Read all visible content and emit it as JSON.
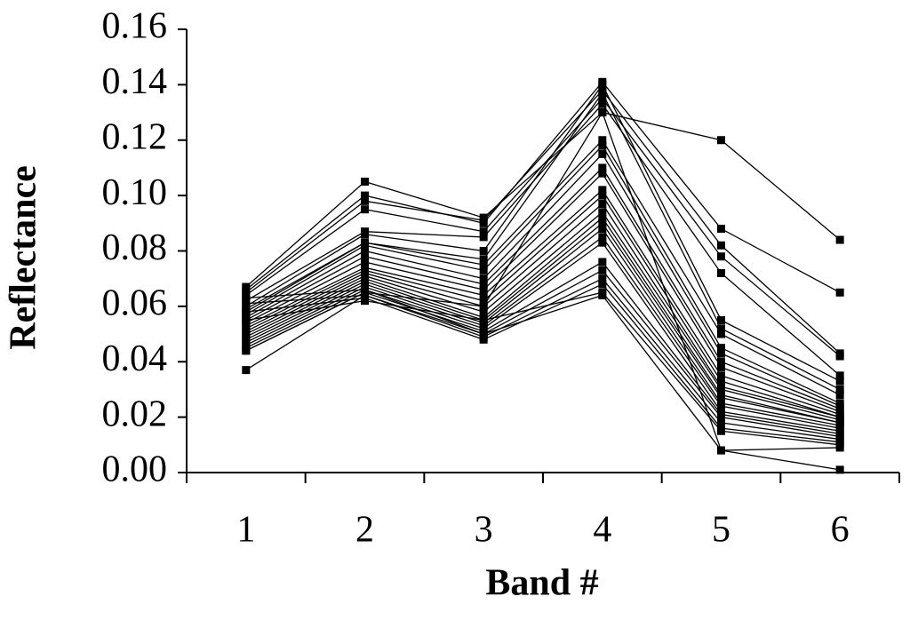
{
  "chart_data": {
    "type": "line",
    "x_label": "Band #",
    "y_label": "Reflectance",
    "categories": [
      "1",
      "2",
      "3",
      "4",
      "5",
      "6"
    ],
    "color": "#000000",
    "marker": "square",
    "ylim": [
      0,
      0.16
    ],
    "yticks": [
      {
        "value": 0,
        "label": "0.00"
      },
      {
        "value": 0.02,
        "label": "0.02"
      },
      {
        "value": 0.04,
        "label": "0.04"
      },
      {
        "value": 0.06,
        "label": "0.06"
      },
      {
        "value": 0.08,
        "label": "0.08"
      },
      {
        "value": 0.1,
        "label": "0.10"
      },
      {
        "value": 0.12,
        "label": "0.12"
      },
      {
        "value": 0.14,
        "label": "0.14"
      },
      {
        "value": 0.16,
        "label": "0.16"
      }
    ],
    "series": [
      {
        "values": [
          0.037,
          0.064,
          0.05,
          0.064,
          0.008,
          0.001
        ]
      },
      {
        "values": [
          0.067,
          0.105,
          0.092,
          0.13,
          0.12,
          0.084
        ]
      },
      {
        "values": [
          0.066,
          0.1,
          0.09,
          0.141,
          0.088,
          0.065
        ]
      },
      {
        "values": [
          0.065,
          0.098,
          0.091,
          0.138,
          0.082,
          0.043
        ]
      },
      {
        "values": [
          0.064,
          0.095,
          0.087,
          0.135,
          0.078,
          0.042
        ]
      },
      {
        "values": [
          0.062,
          0.087,
          0.085,
          0.133,
          0.072,
          0.035
        ]
      },
      {
        "values": [
          0.06,
          0.086,
          0.08,
          0.14,
          0.055,
          0.033
        ]
      },
      {
        "values": [
          0.059,
          0.083,
          0.077,
          0.137,
          0.052,
          0.03
        ]
      },
      {
        "values": [
          0.058,
          0.083,
          0.075,
          0.12,
          0.05,
          0.028
        ]
      },
      {
        "values": [
          0.057,
          0.082,
          0.073,
          0.118,
          0.045,
          0.025
        ]
      },
      {
        "values": [
          0.056,
          0.08,
          0.07,
          0.115,
          0.043,
          0.024
        ]
      },
      {
        "values": [
          0.055,
          0.078,
          0.068,
          0.11,
          0.04,
          0.023
        ]
      },
      {
        "values": [
          0.054,
          0.076,
          0.066,
          0.108,
          0.038,
          0.022
        ]
      },
      {
        "values": [
          0.053,
          0.074,
          0.064,
          0.102,
          0.035,
          0.021
        ]
      },
      {
        "values": [
          0.052,
          0.073,
          0.062,
          0.1,
          0.033,
          0.02
        ]
      },
      {
        "values": [
          0.051,
          0.072,
          0.06,
          0.097,
          0.031,
          0.02
        ]
      },
      {
        "values": [
          0.05,
          0.071,
          0.058,
          0.094,
          0.03,
          0.019
        ]
      },
      {
        "values": [
          0.049,
          0.07,
          0.056,
          0.092,
          0.028,
          0.018
        ]
      },
      {
        "values": [
          0.048,
          0.069,
          0.055,
          0.09,
          0.027,
          0.018
        ]
      },
      {
        "values": [
          0.047,
          0.068,
          0.054,
          0.088,
          0.025,
          0.017
        ]
      },
      {
        "values": [
          0.046,
          0.067,
          0.053,
          0.085,
          0.024,
          0.016
        ]
      },
      {
        "values": [
          0.045,
          0.066,
          0.052,
          0.083,
          0.022,
          0.015
        ]
      },
      {
        "values": [
          0.044,
          0.065,
          0.051,
          0.076,
          0.021,
          0.014
        ]
      },
      {
        "values": [
          0.063,
          0.066,
          0.05,
          0.073,
          0.02,
          0.013
        ]
      },
      {
        "values": [
          0.061,
          0.064,
          0.049,
          0.07,
          0.018,
          0.012
        ]
      },
      {
        "values": [
          0.058,
          0.063,
          0.048,
          0.068,
          0.016,
          0.011
        ]
      },
      {
        "values": [
          0.055,
          0.062,
          0.055,
          0.065,
          0.015,
          0.01
        ]
      },
      {
        "values": [
          0.044,
          0.065,
          0.06,
          0.13,
          0.008,
          0.009
        ]
      }
    ]
  }
}
